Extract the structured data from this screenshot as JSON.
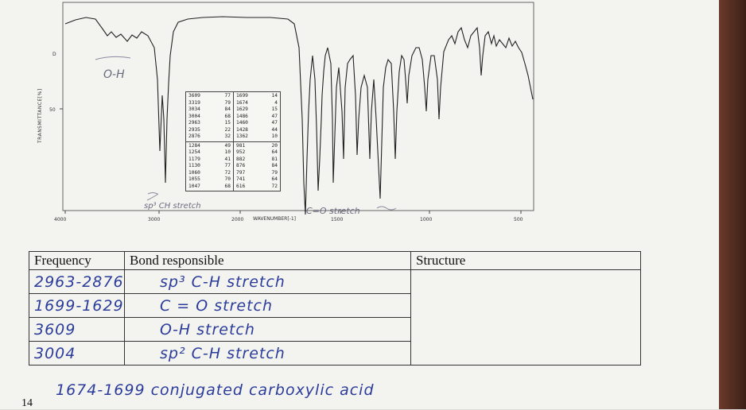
{
  "spectrum": {
    "y_axis_label": "TRANSMITTANCE[%]",
    "y_tick": "50",
    "x_axis_label": "WAVENUMBER[-1]",
    "x_ticks": [
      "4000",
      "3000",
      "2000",
      "1500",
      "1000",
      "500"
    ],
    "annotations": {
      "oh": "O-H",
      "sp3": "sp³ CH stretch",
      "co": "C=O stretch"
    },
    "peak_table": [
      {
        "left": [
          [
            "3609",
            "77"
          ],
          [
            "3319",
            "79"
          ],
          [
            "3034",
            "84"
          ],
          [
            "3004",
            "68"
          ],
          [
            "2963",
            "15"
          ],
          [
            "2935",
            "22"
          ],
          [
            "2876",
            "32"
          ]
        ],
        "right": [
          [
            "1699",
            "14"
          ],
          [
            "1674",
            "4"
          ],
          [
            "1629",
            "15"
          ],
          [
            "1486",
            "47"
          ],
          [
            "1460",
            "47"
          ],
          [
            "1428",
            "44"
          ],
          [
            "1362",
            "10"
          ]
        ]
      },
      {
        "left": [
          [
            "1284",
            "49"
          ],
          [
            "1254",
            "10"
          ],
          [
            "1179",
            "41"
          ],
          [
            "1130",
            "77"
          ],
          [
            "1060",
            "72"
          ],
          [
            "1055",
            "70"
          ],
          [
            "1047",
            "68"
          ]
        ],
        "right": [
          [
            "981",
            "20"
          ],
          [
            "952",
            "64"
          ],
          [
            "882",
            "81"
          ],
          [
            "876",
            "84"
          ],
          [
            "797",
            "79"
          ],
          [
            "741",
            "64"
          ],
          [
            "616",
            "72"
          ]
        ]
      }
    ]
  },
  "table": {
    "headers": [
      "Frequency",
      "Bond responsible",
      "Structure"
    ],
    "rows": [
      {
        "frequency": "2963-2876",
        "bond": "sp³ C-H stretch"
      },
      {
        "frequency": "1699-1629",
        "bond": "C = O stretch"
      },
      {
        "frequency": "3609",
        "bond": "O-H stretch"
      },
      {
        "frequency": "3004",
        "bond": "sp² C-H stretch"
      }
    ]
  },
  "footer_note": "1674-1699 conjugated carboxylic acid",
  "page_number": "14",
  "colors": {
    "ink": "#2b3c9a",
    "paper": "#f3f3f0"
  }
}
